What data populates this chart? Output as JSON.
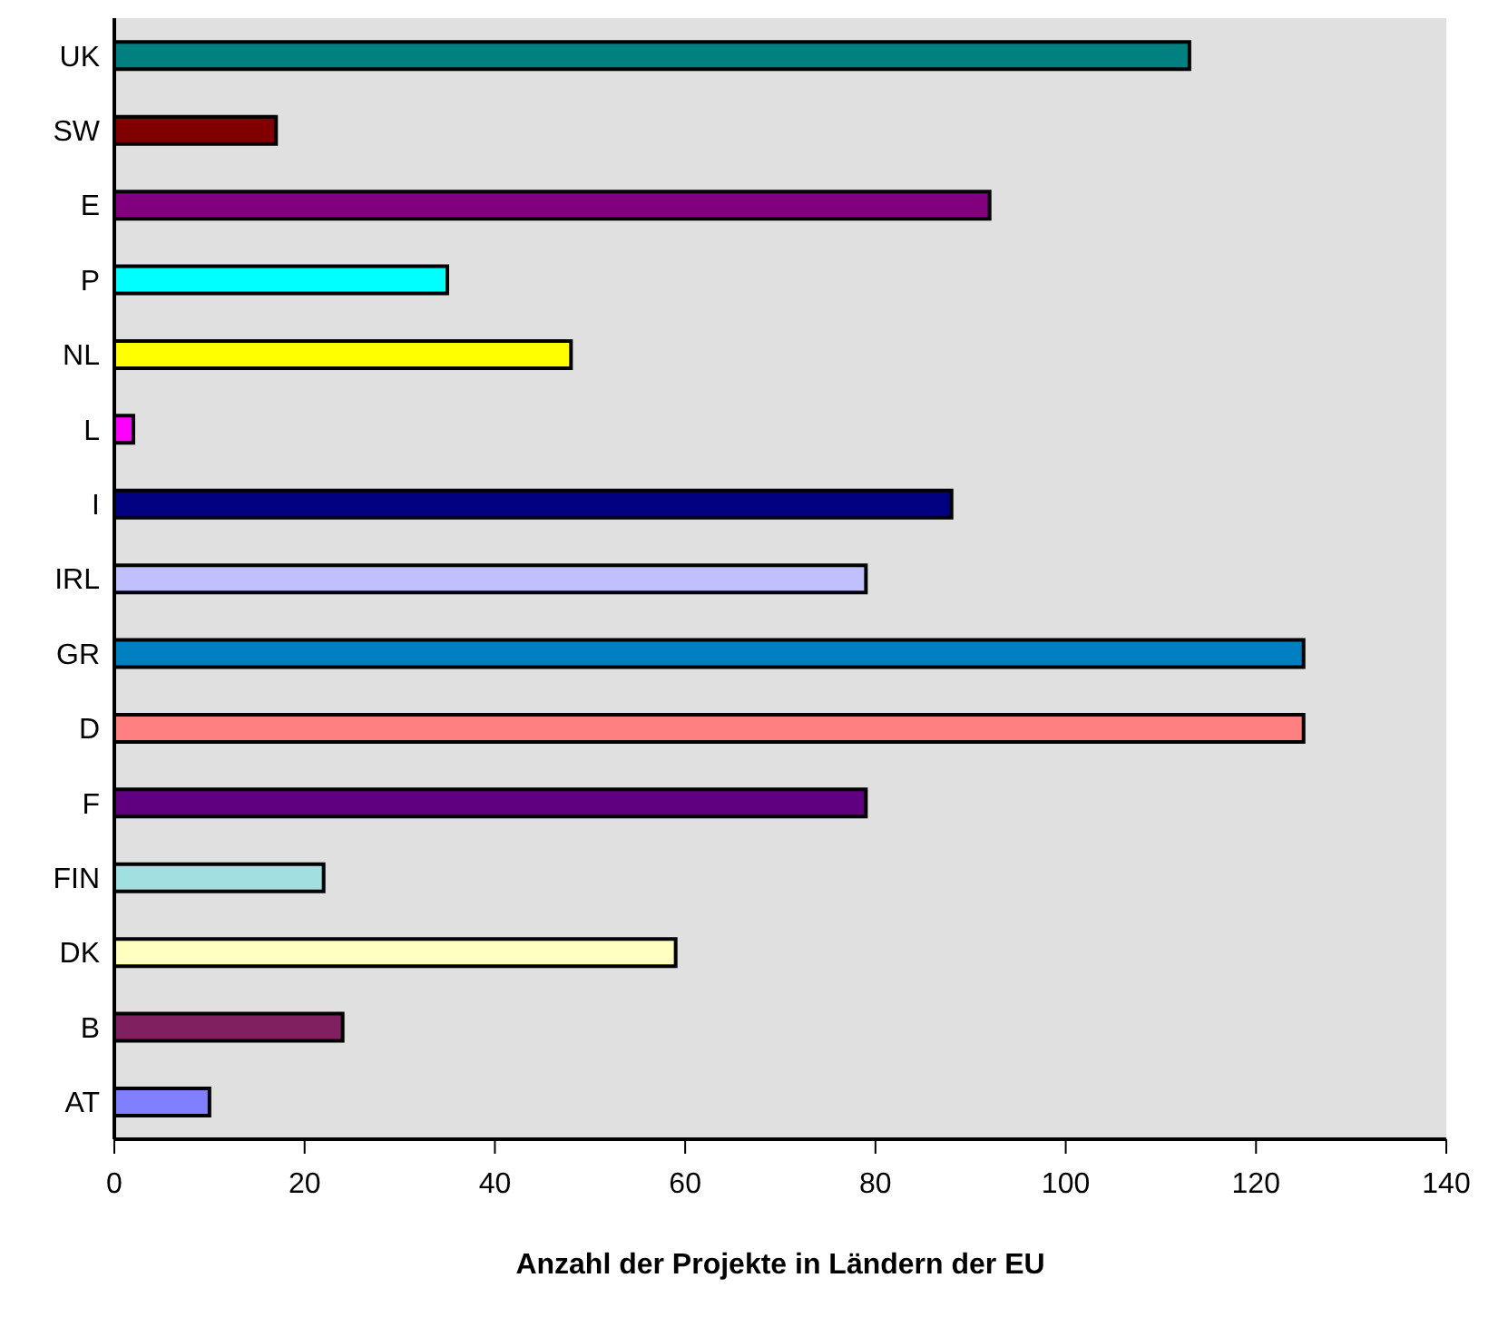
{
  "chart_data": {
    "type": "bar",
    "orientation": "horizontal",
    "xlabel": "Anzahl der Projekte in Ländern der EU",
    "categories": [
      "UK",
      "SW",
      "E",
      "P",
      "NL",
      "L",
      "I",
      "IRL",
      "GR",
      "D",
      "F",
      "FIN",
      "DK",
      "B",
      "AT"
    ],
    "values": [
      113,
      17,
      92,
      35,
      48,
      2,
      88,
      79,
      125,
      125,
      79,
      22,
      59,
      24,
      10
    ],
    "colors": [
      "#008080",
      "#800000",
      "#800080",
      "#00ffff",
      "#ffff00",
      "#ff00ff",
      "#000080",
      "#c0c0ff",
      "#0080c0",
      "#ff8080",
      "#600080",
      "#a0e0e0",
      "#ffffc0",
      "#802060",
      "#8080ff"
    ],
    "xlim": [
      0,
      140
    ],
    "xticks": [
      0,
      20,
      40,
      60,
      80,
      100,
      120,
      140
    ],
    "grid": false
  }
}
